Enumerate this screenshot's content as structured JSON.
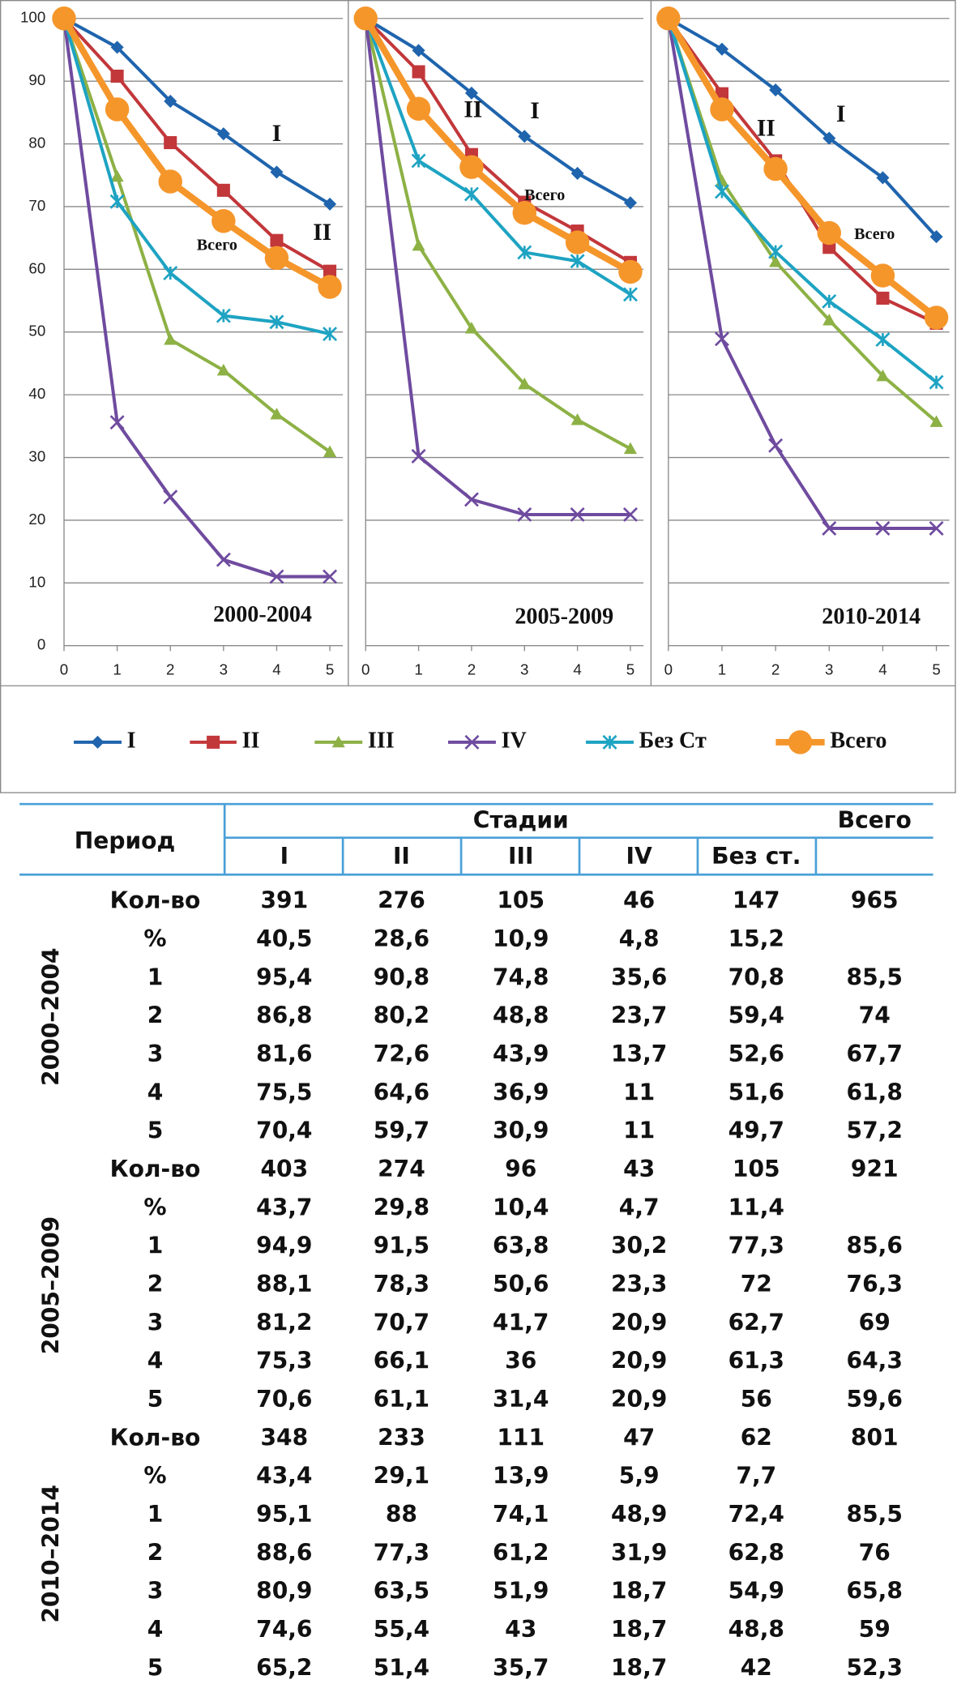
{
  "chart_data": [
    {
      "type": "line",
      "title": "2000-2004",
      "annotations": [
        "I",
        "II",
        "Всего"
      ],
      "x": [
        0,
        1,
        2,
        3,
        4,
        5
      ],
      "xlim": [
        0,
        5
      ],
      "xticks": [
        0,
        1,
        2,
        3,
        4,
        5
      ],
      "ylim": [
        0,
        100
      ],
      "yticks": [
        0,
        10,
        20,
        30,
        40,
        50,
        60,
        70,
        80,
        90,
        100
      ],
      "ytick_labels": true,
      "grid": true,
      "series": [
        {
          "name": "I",
          "color": "#1f64ad",
          "marker": "diamond",
          "values": [
            100,
            95.4,
            86.8,
            81.6,
            75.5,
            70.4
          ]
        },
        {
          "name": "II",
          "color": "#c2373a",
          "marker": "square",
          "values": [
            100,
            90.8,
            80.2,
            72.6,
            64.6,
            59.7
          ]
        },
        {
          "name": "III",
          "color": "#8db145",
          "marker": "triangle",
          "values": [
            100,
            74.8,
            48.8,
            43.9,
            36.9,
            30.9
          ]
        },
        {
          "name": "IV",
          "color": "#6f4b9f",
          "marker": "x",
          "values": [
            100,
            35.6,
            23.7,
            13.7,
            11,
            11
          ]
        },
        {
          "name": "Без Ст",
          "color": "#1ea3c2",
          "marker": "asterisk",
          "values": [
            100,
            70.8,
            59.4,
            52.6,
            51.6,
            49.7
          ]
        },
        {
          "name": "Всего",
          "color": "#f5962b",
          "marker": "circle",
          "values": [
            100,
            85.5,
            74,
            67.7,
            61.8,
            57.2
          ]
        }
      ]
    },
    {
      "type": "line",
      "title": "2005-2009",
      "annotations": [
        "II",
        "I",
        "Всего"
      ],
      "x": [
        0,
        1,
        2,
        3,
        4,
        5
      ],
      "xlim": [
        0,
        5
      ],
      "xticks": [
        0,
        1,
        2,
        3,
        4,
        5
      ],
      "ylim": [
        0,
        100
      ],
      "yticks": [
        0,
        10,
        20,
        30,
        40,
        50,
        60,
        70,
        80,
        90,
        100
      ],
      "ytick_labels": false,
      "grid": true,
      "series": [
        {
          "name": "I",
          "color": "#1f64ad",
          "marker": "diamond",
          "values": [
            100,
            94.9,
            88.1,
            81.2,
            75.3,
            70.6
          ]
        },
        {
          "name": "II",
          "color": "#c2373a",
          "marker": "square",
          "values": [
            100,
            91.5,
            78.3,
            70.7,
            66.1,
            61.1
          ]
        },
        {
          "name": "III",
          "color": "#8db145",
          "marker": "triangle",
          "values": [
            100,
            63.8,
            50.6,
            41.7,
            36,
            31.4
          ]
        },
        {
          "name": "IV",
          "color": "#6f4b9f",
          "marker": "x",
          "values": [
            100,
            30.2,
            23.3,
            20.9,
            20.9,
            20.9
          ]
        },
        {
          "name": "Без Ст",
          "color": "#1ea3c2",
          "marker": "asterisk",
          "values": [
            100,
            77.3,
            72,
            62.7,
            61.3,
            56
          ]
        },
        {
          "name": "Всего",
          "color": "#f5962b",
          "marker": "circle",
          "values": [
            100,
            85.6,
            76.3,
            69,
            64.3,
            59.6
          ]
        }
      ]
    },
    {
      "type": "line",
      "title": "2010-2014",
      "annotations": [
        "II",
        "I",
        "Всего"
      ],
      "x": [
        0,
        1,
        2,
        3,
        4,
        5
      ],
      "xlim": [
        0,
        5
      ],
      "xticks": [
        0,
        1,
        2,
        3,
        4,
        5
      ],
      "ylim": [
        0,
        100
      ],
      "yticks": [
        0,
        10,
        20,
        30,
        40,
        50,
        60,
        70,
        80,
        90,
        100
      ],
      "ytick_labels": false,
      "grid": true,
      "series": [
        {
          "name": "I",
          "color": "#1f64ad",
          "marker": "diamond",
          "values": [
            100,
            95.1,
            88.6,
            80.9,
            74.6,
            65.2
          ]
        },
        {
          "name": "II",
          "color": "#c2373a",
          "marker": "square",
          "values": [
            100,
            88,
            77.3,
            63.5,
            55.4,
            51.4
          ]
        },
        {
          "name": "III",
          "color": "#8db145",
          "marker": "triangle",
          "values": [
            100,
            74.1,
            61.2,
            51.9,
            43,
            35.7
          ]
        },
        {
          "name": "IV",
          "color": "#6f4b9f",
          "marker": "x",
          "values": [
            100,
            48.9,
            31.9,
            18.7,
            18.7,
            18.7
          ]
        },
        {
          "name": "Без Ст",
          "color": "#1ea3c2",
          "marker": "asterisk",
          "values": [
            100,
            72.4,
            62.8,
            54.9,
            48.8,
            42
          ]
        },
        {
          "name": "Всего",
          "color": "#f5962b",
          "marker": "circle",
          "values": [
            100,
            85.5,
            76,
            65.8,
            59,
            52.3
          ]
        }
      ]
    }
  ],
  "table": {
    "header": {
      "period": "Период",
      "stages": "Стадии",
      "total": "Всего",
      "columns": [
        "I",
        "II",
        "III",
        "IV",
        "Без ст."
      ]
    },
    "groups": [
      {
        "period": "2000–2004",
        "rows": [
          [
            "Кол-во",
            "391",
            "276",
            "105",
            "46",
            "147",
            "965"
          ],
          [
            "%",
            "40,5",
            "28,6",
            "10,9",
            "4,8",
            "15,2"
          ],
          [
            "1",
            "95,4",
            "90,8",
            "74,8",
            "35,6",
            "70,8",
            "85,5"
          ],
          [
            "2",
            "86,8",
            "80,2",
            "48,8",
            "23,7",
            "59,4",
            "74"
          ],
          [
            "3",
            "81,6",
            "72,6",
            "43,9",
            "13,7",
            "52,6",
            "67,7"
          ],
          [
            "4",
            "75,5",
            "64,6",
            "36,9",
            "11",
            "51,6",
            "61,8"
          ],
          [
            "5",
            "70,4",
            "59,7",
            "30,9",
            "11",
            "49,7",
            "57,2"
          ]
        ]
      },
      {
        "period": "2005–2009",
        "rows": [
          [
            "Кол-во",
            "403",
            "274",
            "96",
            "43",
            "105",
            "921"
          ],
          [
            "%",
            "43,7",
            "29,8",
            "10,4",
            "4,7",
            "11,4"
          ],
          [
            "1",
            "94,9",
            "91,5",
            "63,8",
            "30,2",
            "77,3",
            "85,6"
          ],
          [
            "2",
            "88,1",
            "78,3",
            "50,6",
            "23,3",
            "72",
            "76,3"
          ],
          [
            "3",
            "81,2",
            "70,7",
            "41,7",
            "20,9",
            "62,7",
            "69"
          ],
          [
            "4",
            "75,3",
            "66,1",
            "36",
            "20,9",
            "61,3",
            "64,3"
          ],
          [
            "5",
            "70,6",
            "61,1",
            "31,4",
            "20,9",
            "56",
            "59,6"
          ]
        ]
      },
      {
        "period": "2010–2014",
        "rows": [
          [
            "Кол-во",
            "348",
            "233",
            "111",
            "47",
            "62",
            "801"
          ],
          [
            "%",
            "43,4",
            "29,1",
            "13,9",
            "5,9",
            "7,7"
          ],
          [
            "1",
            "95,1",
            "88",
            "74,1",
            "48,9",
            "72,4",
            "85,5"
          ],
          [
            "2",
            "88,6",
            "77,3",
            "61,2",
            "31,9",
            "62,8",
            "76"
          ],
          [
            "3",
            "80,9",
            "63,5",
            "51,9",
            "18,7",
            "54,9",
            "65,8"
          ],
          [
            "4",
            "74,6",
            "55,4",
            "43",
            "18,7",
            "48,8",
            "59"
          ],
          [
            "5",
            "65,2",
            "51,4",
            "35,7",
            "18,7",
            "42",
            "52,3"
          ]
        ]
      }
    ]
  }
}
